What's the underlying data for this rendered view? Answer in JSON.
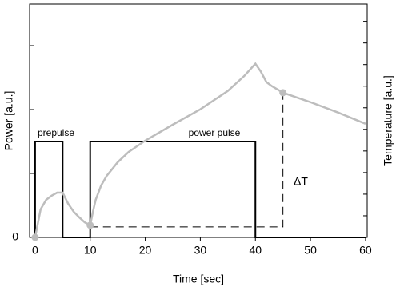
{
  "chart_data": {
    "type": "line",
    "x_label": "Time [sec]",
    "y_label": "Power [a.u.]",
    "y2_label": "Temperature [a.u.]",
    "xlim": [
      -1,
      60.3
    ],
    "xticks": [
      0,
      10,
      20,
      30,
      40,
      50,
      60
    ],
    "ylim": [
      0,
      3.65
    ],
    "yticks": [
      0
    ],
    "yminor_ticks": [
      1,
      2,
      3
    ],
    "y2lim": [
      0,
      10.8
    ],
    "y2minor_ticks": [
      1,
      2,
      3,
      4,
      5,
      6,
      7,
      8,
      9,
      10
    ],
    "series": [
      {
        "color": "#000000",
        "axis": "y",
        "x": [
          0,
          0,
          5,
          5,
          10,
          10,
          40,
          40,
          60
        ],
        "values": [
          0,
          1.5,
          1.5,
          0,
          0,
          1.5,
          1.5,
          0,
          0
        ]
      },
      {
        "color": "#bdbdbd",
        "axis": "y2",
        "x": [
          0,
          1,
          2,
          3,
          4,
          5,
          6,
          7,
          8,
          9,
          10,
          10.5,
          11,
          12,
          13,
          15,
          17,
          20,
          25,
          30,
          35,
          38,
          40,
          41,
          42,
          43,
          45,
          50,
          55,
          60
        ],
        "values": [
          0,
          1.3,
          1.74,
          1.93,
          2.07,
          2.07,
          1.56,
          1.19,
          0.93,
          0.7,
          0.56,
          1.19,
          1.74,
          2.41,
          2.85,
          3.48,
          3.96,
          4.48,
          5.22,
          5.93,
          6.78,
          7.48,
          8.04,
          7.67,
          7.19,
          7.0,
          6.7,
          6.26,
          5.78,
          5.26
        ]
      }
    ],
    "markers": {
      "color": "#bdbdbd",
      "axis": "y2",
      "x": [
        0,
        10,
        45
      ],
      "values": [
        0,
        0.56,
        6.7
      ]
    },
    "annotations": {
      "prepulse": "prepulse",
      "power_pulse": "power pulse",
      "delta": "ΔT"
    }
  }
}
